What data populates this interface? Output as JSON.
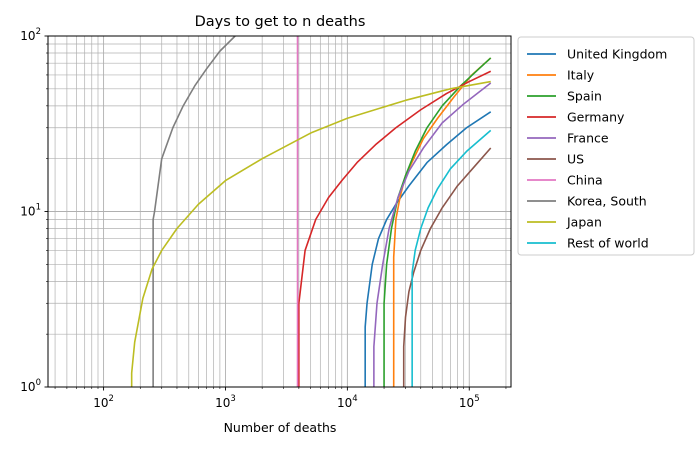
{
  "chart_data": {
    "type": "line",
    "title": "Days to get to n deaths",
    "xlabel": "Number of deaths",
    "ylabel": "",
    "xscale": "log",
    "yscale": "log",
    "xlim": [
      35,
      220000
    ],
    "ylim": [
      1,
      100
    ],
    "x_ticks": [
      {
        "value": 100,
        "base": "10",
        "exp": "2"
      },
      {
        "value": 1000,
        "base": "10",
        "exp": "3"
      },
      {
        "value": 10000,
        "base": "10",
        "exp": "4"
      },
      {
        "value": 100000,
        "base": "10",
        "exp": "5"
      }
    ],
    "y_ticks": [
      {
        "value": 1,
        "base": "10",
        "exp": "0"
      },
      {
        "value": 10,
        "base": "10",
        "exp": "1"
      },
      {
        "value": 100,
        "base": "10",
        "exp": "2"
      }
    ],
    "grid": true,
    "legend_position": "outside-right",
    "series": [
      {
        "name": "United Kingdom",
        "color": "#1f77b4",
        "x": [
          14000,
          14000,
          14500,
          16000,
          18000,
          21000,
          25000,
          32000,
          45000,
          65000,
          95000,
          150000
        ],
        "y": [
          1,
          2.2,
          3,
          5,
          7,
          9,
          11,
          14,
          19,
          24,
          30,
          37
        ]
      },
      {
        "name": "Italy",
        "color": "#ff7f0e",
        "x": [
          24000,
          24000,
          25000,
          27000,
          30000,
          35000,
          42000,
          55000,
          75000,
          105000,
          150000
        ],
        "y": [
          1,
          5.5,
          9,
          12,
          16,
          20,
          26,
          34,
          45,
          60,
          75
        ]
      },
      {
        "name": "Spain",
        "color": "#2ca02c",
        "x": [
          20000,
          20000,
          21000,
          23000,
          26000,
          30000,
          36000,
          45000,
          60000,
          85000,
          120000,
          150000
        ],
        "y": [
          1,
          3,
          5,
          8,
          12,
          16,
          22,
          30,
          40,
          52,
          65,
          75
        ]
      },
      {
        "name": "Germany",
        "color": "#d62728",
        "x": [
          4000,
          4000,
          4500,
          5500,
          7000,
          9000,
          12000,
          17000,
          25000,
          40000,
          65000,
          100000,
          150000
        ],
        "y": [
          1,
          3,
          6,
          9,
          12,
          15,
          19,
          24,
          30,
          38,
          47,
          55,
          63
        ]
      },
      {
        "name": "France",
        "color": "#9467bd",
        "x": [
          16500,
          16500,
          17500,
          19500,
          22000,
          26000,
          32000,
          42000,
          60000,
          90000,
          150000
        ],
        "y": [
          1,
          1.7,
          3,
          5,
          8,
          12,
          17,
          23,
          32,
          41,
          54
        ]
      },
      {
        "name": "US",
        "color": "#8c564b",
        "x": [
          29000,
          29000,
          30000,
          32000,
          35000,
          40000,
          48000,
          60000,
          80000,
          110000,
          150000
        ],
        "y": [
          1,
          1.7,
          2.5,
          3.5,
          4.5,
          6,
          8,
          10.5,
          14,
          18,
          23
        ]
      },
      {
        "name": "China",
        "color": "#e377c2",
        "x": [
          3900,
          3900
        ],
        "y": [
          1,
          100
        ]
      },
      {
        "name": "Korea, South",
        "color": "#7f7f7f",
        "x": [
          255,
          255,
          262,
          300,
          370,
          450,
          560,
          700,
          900,
          1200
        ],
        "y": [
          1,
          9,
          10,
          20,
          30,
          40,
          52,
          65,
          82,
          100
        ]
      },
      {
        "name": "Japan",
        "color": "#bcbd22",
        "x": [
          170,
          170,
          180,
          210,
          250,
          300,
          400,
          600,
          1000,
          2000,
          5000,
          10000,
          30000,
          70000,
          150000
        ],
        "y": [
          1,
          1.2,
          1.8,
          3.2,
          4.7,
          6,
          8,
          11,
          15,
          20,
          28,
          34,
          43,
          50,
          55
        ]
      },
      {
        "name": "Rest of world",
        "color": "#17becf",
        "x": [
          34000,
          34000,
          36000,
          40000,
          46000,
          55000,
          70000,
          95000,
          150000
        ],
        "y": [
          1,
          4.5,
          6,
          8,
          10.5,
          13.5,
          17.5,
          22,
          29
        ]
      }
    ]
  }
}
